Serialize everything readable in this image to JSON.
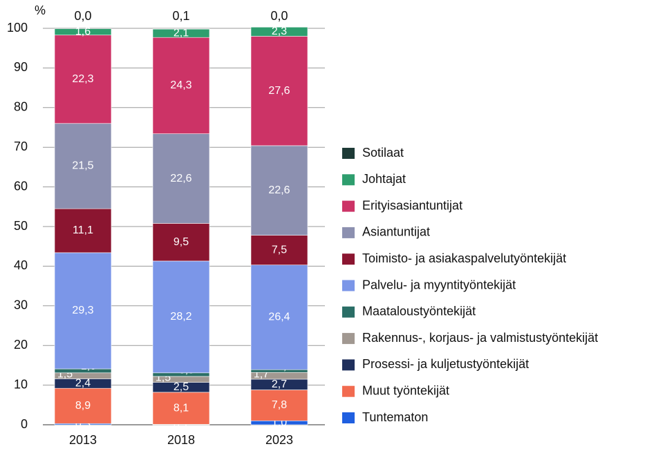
{
  "chart_data": {
    "type": "stacked_bar",
    "y_unit_label": "%",
    "categories": [
      "2013",
      "2018",
      "2023"
    ],
    "ylim": [
      0,
      100
    ],
    "yticks": [
      0,
      10,
      20,
      30,
      40,
      50,
      60,
      70,
      80,
      90,
      100
    ],
    "grid": true,
    "legend": "right",
    "series": [
      {
        "name": "Tuntematon",
        "color": "#1f5fe0",
        "values": [
          0.3,
          0.1,
          1.0
        ],
        "value_labels": [
          "0,3",
          "0,1",
          "1,0"
        ]
      },
      {
        "name": "Muut työntekijät",
        "color": "#f26b50",
        "values": [
          8.9,
          8.1,
          7.8
        ],
        "value_labels": [
          "8,9",
          "8,1",
          "7,8"
        ]
      },
      {
        "name": "Prosessi- ja kuljetustyöntekijät",
        "color": "#1f2f5c",
        "values": [
          2.4,
          2.5,
          2.7
        ],
        "value_labels": [
          "2,4",
          "2,5",
          "2,7"
        ]
      },
      {
        "name": "Rakennus-, korjaus- ja valmistustyöntekijät",
        "color": "#a19891",
        "values": [
          1.5,
          1.5,
          1.7
        ],
        "value_labels": [
          "1,5",
          "1,5",
          "1,7"
        ]
      },
      {
        "name": "Maataloustyöntekijät",
        "color": "#2a6e66",
        "values": [
          1.0,
          0.9,
          0.7
        ],
        "value_labels": [
          "1,0",
          "0,9",
          "0,7"
        ]
      },
      {
        "name": "Palvelu- ja myyntityöntekijät",
        "color": "#7b96e8",
        "values": [
          29.3,
          28.2,
          26.4
        ],
        "value_labels": [
          "29,3",
          "28,2",
          "26,4"
        ]
      },
      {
        "name": "Toimisto- ja asiakaspalvelutyöntekijät",
        "color": "#8b1530",
        "values": [
          11.1,
          9.5,
          7.5
        ],
        "value_labels": [
          "11,1",
          "9,5",
          "7,5"
        ]
      },
      {
        "name": "Asiantuntijat",
        "color": "#8c90b0",
        "values": [
          21.5,
          22.6,
          22.6
        ],
        "value_labels": [
          "21,5",
          "22,6",
          "22,6"
        ]
      },
      {
        "name": "Erityisasiantuntijat",
        "color": "#cc3366",
        "values": [
          22.3,
          24.3,
          27.6
        ],
        "value_labels": [
          "22,3",
          "24,3",
          "27,6"
        ]
      },
      {
        "name": "Johtajat",
        "color": "#2e9e6e",
        "values": [
          1.6,
          2.1,
          2.3
        ],
        "value_labels": [
          "1,6",
          "2,1",
          "2,3"
        ]
      },
      {
        "name": "Sotilaat",
        "color": "#1d3a36",
        "values": [
          0.0,
          0.1,
          0.0
        ],
        "value_labels": [
          "0,0",
          "0,1",
          "0,0"
        ]
      }
    ]
  }
}
